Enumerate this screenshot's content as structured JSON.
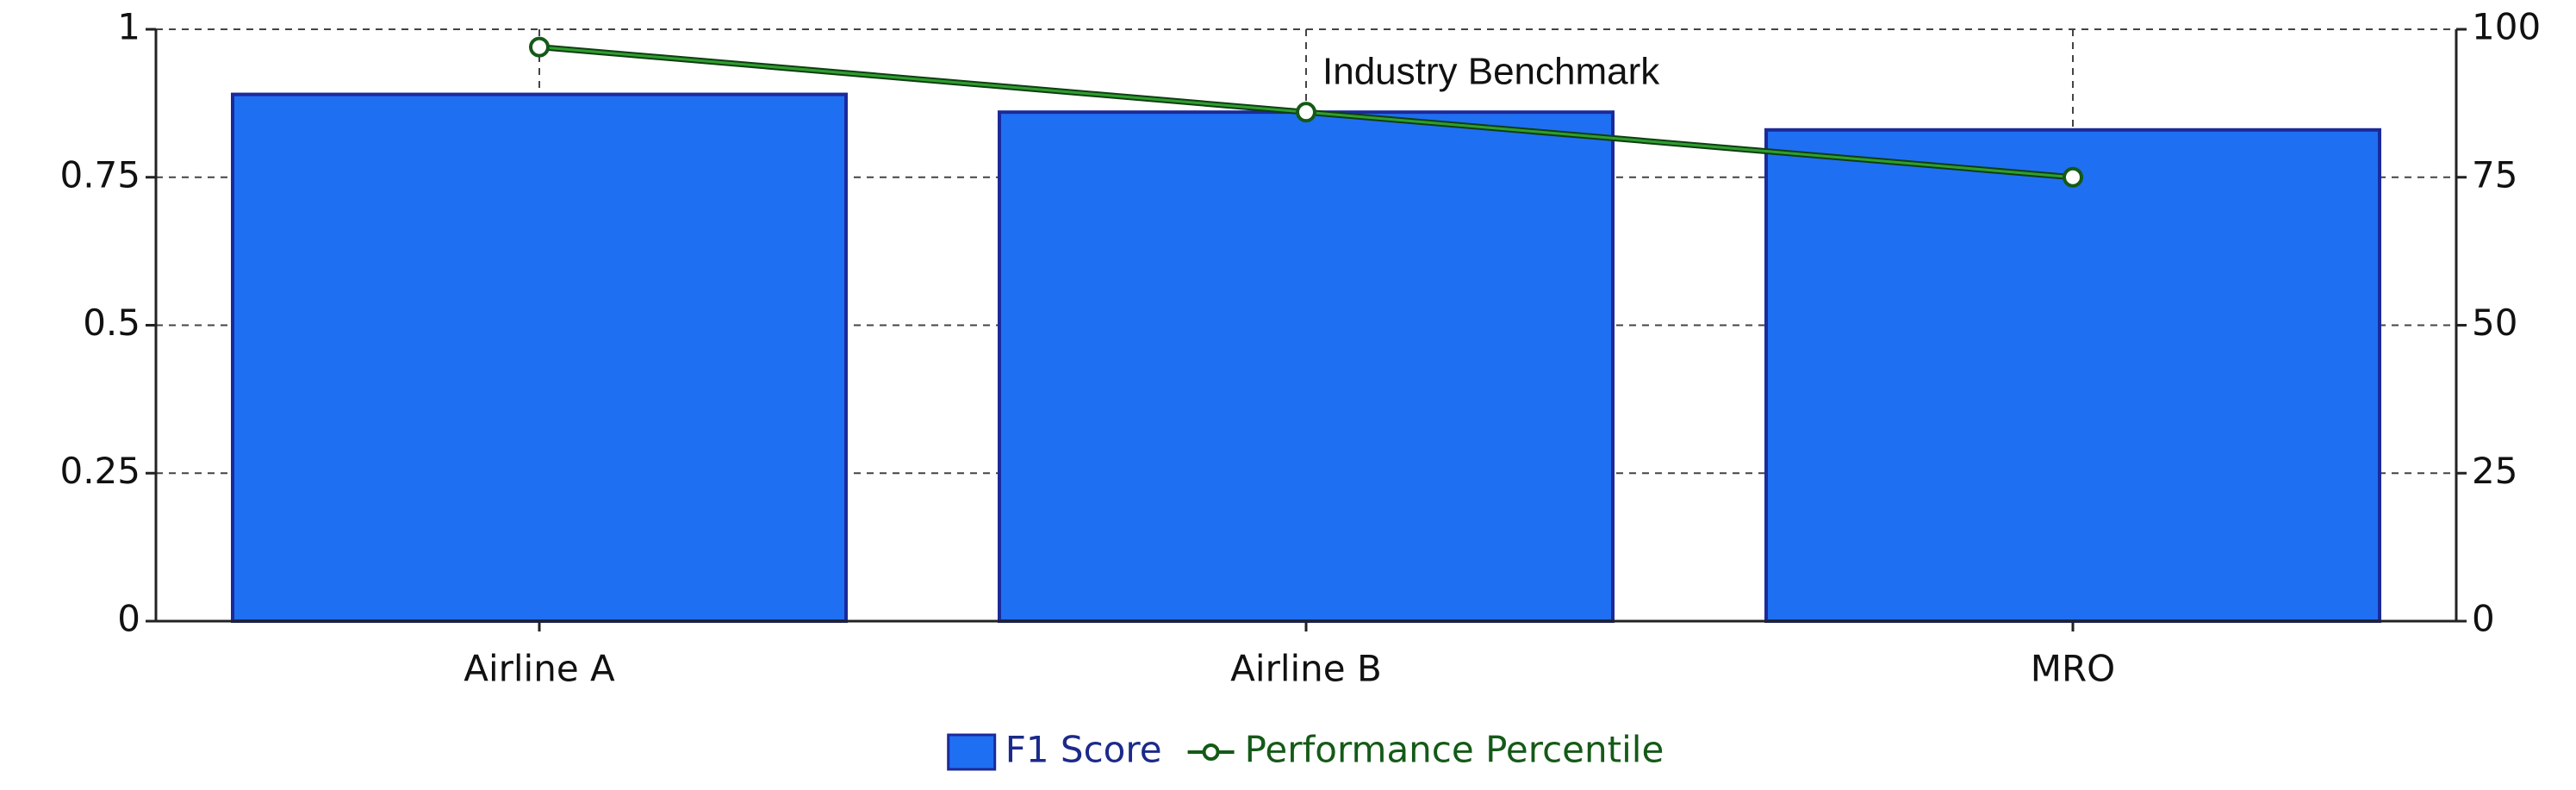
{
  "chart_data": {
    "type": "bar",
    "categories": [
      "Airline A",
      "Airline B",
      "MRO"
    ],
    "series": [
      {
        "name": "F1 Score",
        "type": "bar",
        "color": "#1f6ff2",
        "values": [
          0.89,
          0.86,
          0.83
        ]
      },
      {
        "name": "Performance Percentile",
        "type": "line",
        "axis": "y2",
        "color": "#2f9e2f",
        "values": [
          97,
          86,
          75
        ]
      }
    ],
    "ylim": [
      0,
      1
    ],
    "yticks": [
      0,
      0.25,
      0.5,
      0.75,
      1
    ],
    "y2lim": [
      0,
      100
    ],
    "y2ticks": [
      0,
      25,
      50,
      75,
      100
    ],
    "annotation": "Industry Benchmark",
    "grid": true,
    "legend": "bottom"
  }
}
